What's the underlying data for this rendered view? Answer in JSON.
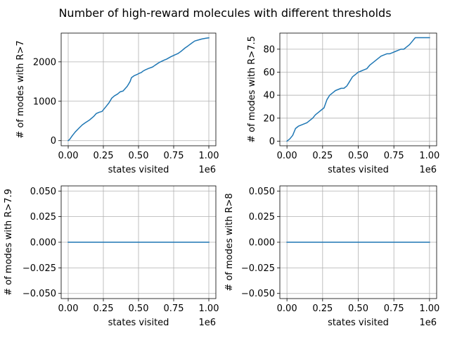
{
  "figure": {
    "title": "Number of high-reward molecules with different thresholds",
    "line_color": "#1f77b4"
  },
  "chart_data": [
    {
      "type": "line",
      "title": "",
      "xlabel": "states visited",
      "ylabel": "# of modes with R>7",
      "x_offset_label": "1e6",
      "xlim": [
        -0.05,
        1.05
      ],
      "ylim": [
        -130,
        2730
      ],
      "xticks": [
        0.0,
        0.25,
        0.5,
        0.75,
        1.0
      ],
      "xtick_labels": [
        "0.00",
        "0.25",
        "0.50",
        "0.75",
        "1.00"
      ],
      "yticks": [
        0,
        1000,
        2000
      ],
      "ytick_labels": [
        "0",
        "1000",
        "2000"
      ],
      "grid": true,
      "series": [
        {
          "x": [
            0.0,
            0.01,
            0.03,
            0.05,
            0.08,
            0.1,
            0.12,
            0.15,
            0.18,
            0.2,
            0.22,
            0.24,
            0.27,
            0.29,
            0.31,
            0.33,
            0.35,
            0.37,
            0.39,
            0.4,
            0.42,
            0.44,
            0.45,
            0.47,
            0.49,
            0.5,
            0.52,
            0.53,
            0.55,
            0.57,
            0.6,
            0.62,
            0.65,
            0.68,
            0.7,
            0.73,
            0.76,
            0.78,
            0.8,
            0.83,
            0.85,
            0.88,
            0.9,
            0.93,
            0.95,
            0.98,
            1.0
          ],
          "y": [
            0,
            30,
            130,
            220,
            330,
            400,
            450,
            520,
            610,
            690,
            720,
            740,
            870,
            960,
            1080,
            1140,
            1180,
            1240,
            1260,
            1300,
            1380,
            1500,
            1600,
            1650,
            1680,
            1700,
            1730,
            1760,
            1800,
            1830,
            1870,
            1920,
            1990,
            2040,
            2070,
            2130,
            2180,
            2210,
            2260,
            2350,
            2400,
            2480,
            2530,
            2560,
            2580,
            2600,
            2610
          ]
        }
      ]
    },
    {
      "type": "line",
      "title": "",
      "xlabel": "states visited",
      "ylabel": "# of modes with R>7.5",
      "x_offset_label": "1e6",
      "xlim": [
        -0.05,
        1.05
      ],
      "ylim": [
        -4,
        94
      ],
      "xticks": [
        0.0,
        0.25,
        0.5,
        0.75,
        1.0
      ],
      "xtick_labels": [
        "0.00",
        "0.25",
        "0.50",
        "0.75",
        "1.00"
      ],
      "yticks": [
        0,
        20,
        40,
        60,
        80
      ],
      "ytick_labels": [
        "0",
        "20",
        "40",
        "60",
        "80"
      ],
      "grid": true,
      "series": [
        {
          "x": [
            0.0,
            0.02,
            0.04,
            0.06,
            0.08,
            0.1,
            0.12,
            0.14,
            0.16,
            0.18,
            0.2,
            0.22,
            0.24,
            0.26,
            0.28,
            0.3,
            0.32,
            0.34,
            0.36,
            0.38,
            0.4,
            0.42,
            0.44,
            0.46,
            0.48,
            0.5,
            0.52,
            0.54,
            0.56,
            0.58,
            0.6,
            0.62,
            0.64,
            0.66,
            0.68,
            0.7,
            0.72,
            0.74,
            0.76,
            0.78,
            0.8,
            0.82,
            0.84,
            0.86,
            0.88,
            0.9,
            0.92,
            0.94,
            0.96,
            0.98,
            1.0
          ],
          "y": [
            0,
            2,
            5,
            11,
            13,
            14,
            15,
            16,
            18,
            20,
            23,
            25,
            27,
            29,
            36,
            40,
            42,
            44,
            45,
            46,
            46,
            48,
            52,
            56,
            58,
            60,
            61,
            62,
            63,
            66,
            68,
            70,
            72,
            74,
            75,
            76,
            76,
            77,
            78,
            79,
            80,
            80,
            82,
            84,
            87,
            90,
            90,
            90,
            90,
            90,
            90
          ]
        }
      ]
    },
    {
      "type": "line",
      "title": "",
      "xlabel": "states visited",
      "ylabel": "# of modes with R>7.9",
      "x_offset_label": "1e6",
      "xlim": [
        -0.05,
        1.05
      ],
      "ylim": [
        -0.055,
        0.055
      ],
      "xticks": [
        0.0,
        0.25,
        0.5,
        0.75,
        1.0
      ],
      "xtick_labels": [
        "0.00",
        "0.25",
        "0.50",
        "0.75",
        "1.00"
      ],
      "yticks": [
        -0.05,
        -0.025,
        0.0,
        0.025,
        0.05
      ],
      "ytick_labels": [
        "−0.050",
        "−0.025",
        "0.000",
        "0.025",
        "0.050"
      ],
      "grid": true,
      "series": [
        {
          "x": [
            0.0,
            1.0
          ],
          "y": [
            0,
            0
          ]
        }
      ]
    },
    {
      "type": "line",
      "title": "",
      "xlabel": "states visited",
      "ylabel": "# of modes with R>8",
      "x_offset_label": "1e6",
      "xlim": [
        -0.05,
        1.05
      ],
      "ylim": [
        -0.055,
        0.055
      ],
      "xticks": [
        0.0,
        0.25,
        0.5,
        0.75,
        1.0
      ],
      "xtick_labels": [
        "0.00",
        "0.25",
        "0.50",
        "0.75",
        "1.00"
      ],
      "yticks": [
        -0.05,
        -0.025,
        0.0,
        0.025,
        0.05
      ],
      "ytick_labels": [
        "−0.050",
        "−0.025",
        "0.000",
        "0.025",
        "0.050"
      ],
      "grid": true,
      "series": [
        {
          "x": [
            0.0,
            1.0
          ],
          "y": [
            0,
            0
          ]
        }
      ]
    }
  ]
}
